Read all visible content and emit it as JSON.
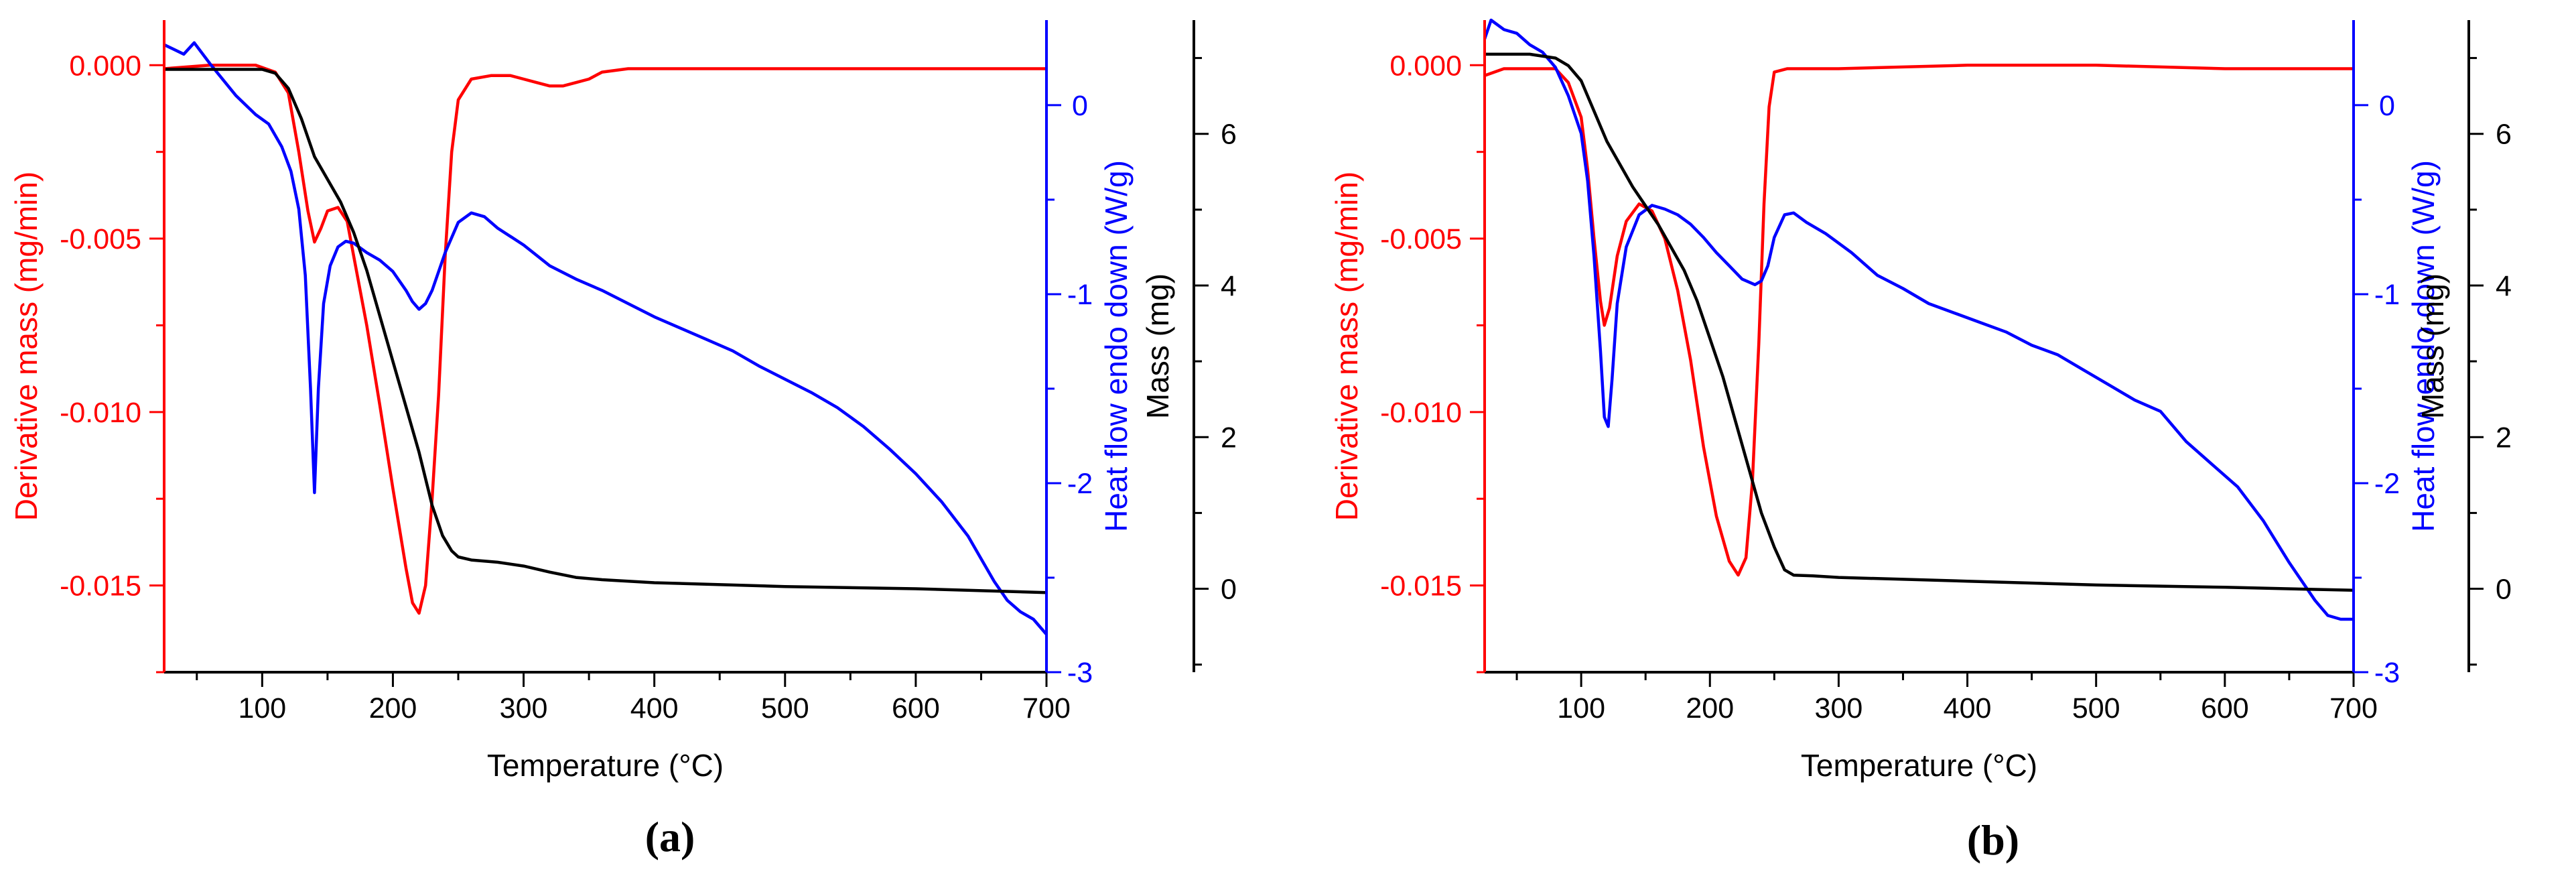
{
  "figure": {
    "panels": [
      {
        "label": "(a)"
      },
      {
        "label": "(b)"
      }
    ]
  },
  "colors": {
    "derivative": "#ff0000",
    "heat_flow": "#0000ff",
    "mass": "#000000"
  },
  "chart_data": [
    {
      "type": "line",
      "panel": "(a)",
      "xlabel": "Temperature (°C)",
      "xlim": [
        25,
        700
      ],
      "xticks": [
        100,
        200,
        300,
        400,
        500,
        600,
        700
      ],
      "xtick_labels": [
        "100",
        "200",
        "300",
        "400",
        "500",
        "600",
        "700"
      ],
      "axes": {
        "left": {
          "label": "Derivative mass (mg/min)",
          "lim": [
            -0.0175,
            0.0013
          ],
          "ticks": [
            0.0,
            -0.005,
            -0.01,
            -0.015
          ],
          "tick_labels": [
            "0.000",
            "-0.005",
            "-0.010",
            "-0.015"
          ],
          "color": "#ff0000"
        },
        "right_inner": {
          "label": "Heat flow endo down (W/g)",
          "lim": [
            -3.0,
            0.45
          ],
          "ticks": [
            0,
            -1,
            -2,
            -3
          ],
          "tick_labels": [
            "0",
            "-1",
            "-2",
            "-3"
          ],
          "color": "#0000ff"
        },
        "right_outer": {
          "label": "Mass (mg)",
          "lim": [
            -1.1,
            7.5
          ],
          "ticks": [
            6,
            4,
            2,
            0
          ],
          "tick_labels": [
            "6",
            "4",
            "2",
            "0"
          ],
          "color": "#000000"
        }
      },
      "series": [
        {
          "name": "Derivative mass",
          "axis": "left",
          "color": "#ff0000",
          "x": [
            25,
            60,
            95,
            110,
            120,
            128,
            135,
            140,
            145,
            150,
            158,
            165,
            170,
            180,
            190,
            200,
            210,
            215,
            220,
            225,
            230,
            235,
            240,
            245,
            250,
            260,
            275,
            290,
            300,
            310,
            320,
            330,
            340,
            350,
            360,
            380,
            420,
            500,
            600,
            700
          ],
          "y": [
            -0.0001,
            0.0,
            0.0,
            -0.0002,
            -0.0008,
            -0.0025,
            -0.0042,
            -0.0051,
            -0.0047,
            -0.0042,
            -0.0041,
            -0.0045,
            -0.0055,
            -0.0075,
            -0.0098,
            -0.0122,
            -0.0145,
            -0.0155,
            -0.0158,
            -0.015,
            -0.0125,
            -0.0095,
            -0.0055,
            -0.0025,
            -0.001,
            -0.0004,
            -0.0003,
            -0.0003,
            -0.0004,
            -0.0005,
            -0.0006,
            -0.0006,
            -0.0005,
            -0.0004,
            -0.0002,
            -0.0001,
            -0.0001,
            -0.0001,
            -0.0001,
            -0.0001
          ]
        },
        {
          "name": "Heat flow",
          "axis": "right_inner",
          "color": "#0000ff",
          "x": [
            25,
            40,
            48,
            60,
            80,
            95,
            105,
            115,
            122,
            128,
            133,
            137,
            140,
            143,
            147,
            152,
            158,
            164,
            170,
            180,
            190,
            200,
            210,
            215,
            220,
            225,
            230,
            240,
            250,
            260,
            270,
            280,
            300,
            320,
            340,
            360,
            380,
            400,
            420,
            440,
            460,
            480,
            500,
            520,
            540,
            560,
            580,
            600,
            620,
            640,
            650,
            660,
            670,
            680,
            690,
            700
          ],
          "y": [
            0.32,
            0.27,
            0.33,
            0.22,
            0.05,
            -0.05,
            -0.1,
            -0.22,
            -0.35,
            -0.55,
            -0.9,
            -1.5,
            -2.05,
            -1.5,
            -1.05,
            -0.85,
            -0.75,
            -0.72,
            -0.73,
            -0.78,
            -0.82,
            -0.88,
            -0.98,
            -1.04,
            -1.08,
            -1.05,
            -0.98,
            -0.78,
            -0.62,
            -0.57,
            -0.59,
            -0.65,
            -0.74,
            -0.85,
            -0.92,
            -0.98,
            -1.05,
            -1.12,
            -1.18,
            -1.24,
            -1.3,
            -1.38,
            -1.45,
            -1.52,
            -1.6,
            -1.7,
            -1.82,
            -1.95,
            -2.1,
            -2.28,
            -2.4,
            -2.52,
            -2.62,
            -2.68,
            -2.72,
            -2.8
          ]
        },
        {
          "name": "Mass",
          "axis": "right_outer",
          "color": "#000000",
          "x": [
            25,
            60,
            100,
            110,
            120,
            130,
            140,
            150,
            160,
            170,
            180,
            190,
            200,
            210,
            220,
            230,
            238,
            245,
            250,
            260,
            280,
            300,
            320,
            340,
            360,
            400,
            500,
            600,
            700
          ],
          "y": [
            6.85,
            6.85,
            6.85,
            6.8,
            6.6,
            6.2,
            5.7,
            5.4,
            5.1,
            4.7,
            4.2,
            3.6,
            3.0,
            2.4,
            1.8,
            1.1,
            0.7,
            0.5,
            0.42,
            0.38,
            0.35,
            0.3,
            0.22,
            0.15,
            0.12,
            0.08,
            0.03,
            0.0,
            -0.05
          ]
        }
      ]
    },
    {
      "type": "line",
      "panel": "(b)",
      "xlabel": "Temperature (°C)",
      "xlim": [
        25,
        700
      ],
      "xticks": [
        100,
        200,
        300,
        400,
        500,
        600,
        700
      ],
      "xtick_labels": [
        "100",
        "200",
        "300",
        "400",
        "500",
        "600",
        "700"
      ],
      "axes": {
        "left": {
          "label": "Derivative mass (mg/min)",
          "lim": [
            -0.0175,
            0.0013
          ],
          "ticks": [
            0.0,
            -0.005,
            -0.01,
            -0.015
          ],
          "tick_labels": [
            "0.000",
            "-0.005",
            "-0.010",
            "-0.015"
          ],
          "color": "#ff0000"
        },
        "right_inner": {
          "label": "Heat flow endo down (W/g)",
          "lim": [
            -3.0,
            0.45
          ],
          "ticks": [
            0,
            -1,
            -2,
            -3
          ],
          "tick_labels": [
            "0",
            "-1",
            "-2",
            "-3"
          ],
          "color": "#0000ff"
        },
        "right_outer": {
          "label": "Mass (mg)",
          "lim": [
            -1.1,
            7.5
          ],
          "ticks": [
            6,
            4,
            2,
            0
          ],
          "tick_labels": [
            "6",
            "4",
            "2",
            "0"
          ],
          "color": "#000000"
        }
      },
      "series": [
        {
          "name": "Derivative mass",
          "axis": "left",
          "color": "#ff0000",
          "x": [
            25,
            40,
            60,
            80,
            90,
            100,
            105,
            110,
            115,
            118,
            122,
            128,
            135,
            145,
            155,
            165,
            175,
            185,
            195,
            205,
            215,
            222,
            228,
            233,
            238,
            242,
            246,
            250,
            260,
            300,
            400,
            500,
            600,
            700
          ],
          "y": [
            -0.0003,
            -0.0001,
            -0.0001,
            -0.0001,
            -0.0005,
            -0.0015,
            -0.003,
            -0.005,
            -0.0068,
            -0.0075,
            -0.007,
            -0.0055,
            -0.0045,
            -0.004,
            -0.0042,
            -0.005,
            -0.0065,
            -0.0085,
            -0.011,
            -0.013,
            -0.0143,
            -0.0147,
            -0.0142,
            -0.012,
            -0.008,
            -0.004,
            -0.0012,
            -0.0002,
            -0.0001,
            -0.0001,
            0.0,
            0.0,
            -0.0001,
            -0.0001
          ]
        },
        {
          "name": "Heat flow",
          "axis": "right_inner",
          "color": "#0000ff",
          "x": [
            25,
            30,
            40,
            50,
            60,
            70,
            80,
            90,
            100,
            105,
            110,
            115,
            118,
            121,
            124,
            128,
            135,
            145,
            155,
            165,
            175,
            185,
            195,
            205,
            215,
            225,
            235,
            240,
            245,
            250,
            258,
            265,
            275,
            290,
            310,
            330,
            350,
            370,
            390,
            410,
            430,
            450,
            470,
            490,
            510,
            530,
            550,
            570,
            590,
            610,
            630,
            650,
            670,
            680,
            690,
            700
          ],
          "y": [
            0.35,
            0.45,
            0.4,
            0.38,
            0.32,
            0.28,
            0.2,
            0.05,
            -0.15,
            -0.4,
            -0.8,
            -1.3,
            -1.65,
            -1.7,
            -1.45,
            -1.05,
            -0.75,
            -0.58,
            -0.53,
            -0.55,
            -0.58,
            -0.63,
            -0.7,
            -0.78,
            -0.85,
            -0.92,
            -0.95,
            -0.93,
            -0.85,
            -0.7,
            -0.58,
            -0.57,
            -0.62,
            -0.68,
            -0.78,
            -0.9,
            -0.97,
            -1.05,
            -1.1,
            -1.15,
            -1.2,
            -1.27,
            -1.32,
            -1.4,
            -1.48,
            -1.56,
            -1.62,
            -1.78,
            -1.9,
            -2.02,
            -2.2,
            -2.42,
            -2.62,
            -2.7,
            -2.72,
            -2.72
          ]
        },
        {
          "name": "Mass",
          "axis": "right_outer",
          "color": "#000000",
          "x": [
            25,
            60,
            80,
            90,
            100,
            110,
            120,
            130,
            140,
            150,
            160,
            170,
            180,
            190,
            200,
            210,
            220,
            230,
            240,
            250,
            258,
            265,
            280,
            300,
            400,
            500,
            600,
            700
          ],
          "y": [
            7.05,
            7.05,
            7.0,
            6.9,
            6.7,
            6.3,
            5.9,
            5.6,
            5.3,
            5.05,
            4.8,
            4.5,
            4.2,
            3.8,
            3.3,
            2.8,
            2.2,
            1.6,
            1.0,
            0.55,
            0.25,
            0.18,
            0.17,
            0.15,
            0.1,
            0.05,
            0.02,
            -0.02
          ]
        }
      ]
    }
  ]
}
